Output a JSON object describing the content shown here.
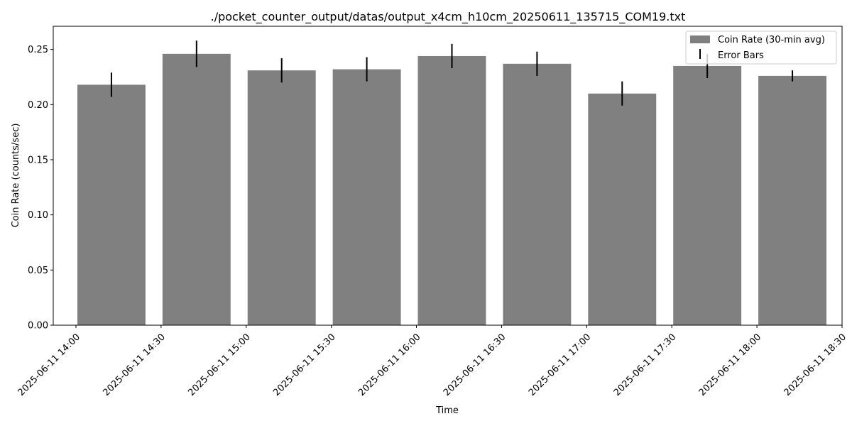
{
  "chart_data": {
    "type": "bar",
    "title": "./pocket_counter_output/datas/output_x4cm_h10cm_20250611_135715_COM19.txt",
    "xlabel": "Time",
    "ylabel": "Coin Rate (counts/sec)",
    "ylim": [
      0,
      0.271
    ],
    "xlim_minutes": [
      -8,
      270
    ],
    "y_ticks": [
      0.0,
      0.05,
      0.1,
      0.15,
      0.2,
      0.25
    ],
    "y_tick_labels": [
      "0.00",
      "0.05",
      "0.10",
      "0.15",
      "0.20",
      "0.25"
    ],
    "x_tick_minutes": [
      0,
      30,
      60,
      90,
      120,
      150,
      180,
      210,
      240,
      270
    ],
    "x_tick_labels": [
      "2025-06-11 14:00",
      "2025-06-11 14:30",
      "2025-06-11 15:00",
      "2025-06-11 15:30",
      "2025-06-11 16:00",
      "2025-06-11 16:30",
      "2025-06-11 17:00",
      "2025-06-11 17:30",
      "2025-06-11 18:00",
      "2025-06-11 18:30"
    ],
    "bar_centers_minutes": [
      12.5,
      42.5,
      72.5,
      102.5,
      132.5,
      162.5,
      192.5,
      222.5,
      252.5
    ],
    "bar_width_minutes": 24,
    "values": [
      0.218,
      0.246,
      0.231,
      0.232,
      0.244,
      0.237,
      0.21,
      0.235,
      0.226
    ],
    "errors": [
      0.011,
      0.012,
      0.011,
      0.011,
      0.011,
      0.011,
      0.011,
      0.011,
      0.005
    ],
    "bar_color": "#808080",
    "error_color": "#000000",
    "grid": false,
    "legend": {
      "placement": "top-right",
      "entries": [
        "Coin Rate (30-min avg)",
        "Error Bars"
      ]
    }
  }
}
